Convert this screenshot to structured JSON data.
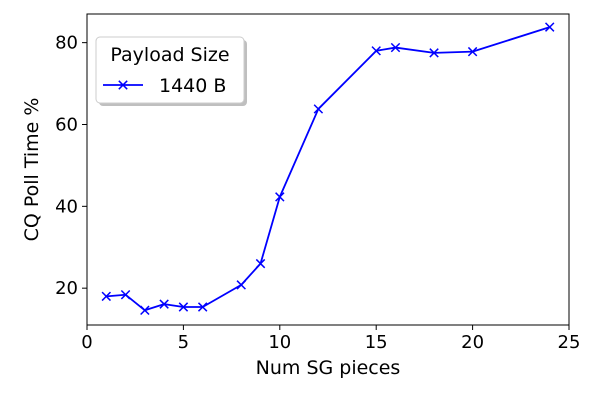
{
  "chart_data": {
    "type": "line",
    "xlabel": "Num SG pieces",
    "ylabel": "CQ Poll Time %",
    "xlim": [
      0,
      25
    ],
    "ylim": [
      11,
      87
    ],
    "xticks": [
      0,
      5,
      10,
      15,
      20,
      25
    ],
    "yticks": [
      20,
      40,
      60,
      80
    ],
    "grid": false,
    "legend": {
      "title": "Payload Size",
      "placement": "top-left"
    },
    "series": [
      {
        "name": "1440 B",
        "color": "#0000ff",
        "marker": "x",
        "x": [
          1,
          2,
          3,
          4,
          5,
          6,
          8,
          9,
          10,
          12,
          15,
          16,
          18,
          20,
          24
        ],
        "y": [
          18.0,
          18.4,
          14.6,
          16.1,
          15.4,
          15.4,
          20.8,
          26.0,
          42.3,
          63.8,
          78.0,
          78.8,
          77.5,
          77.8,
          83.8
        ]
      }
    ]
  }
}
